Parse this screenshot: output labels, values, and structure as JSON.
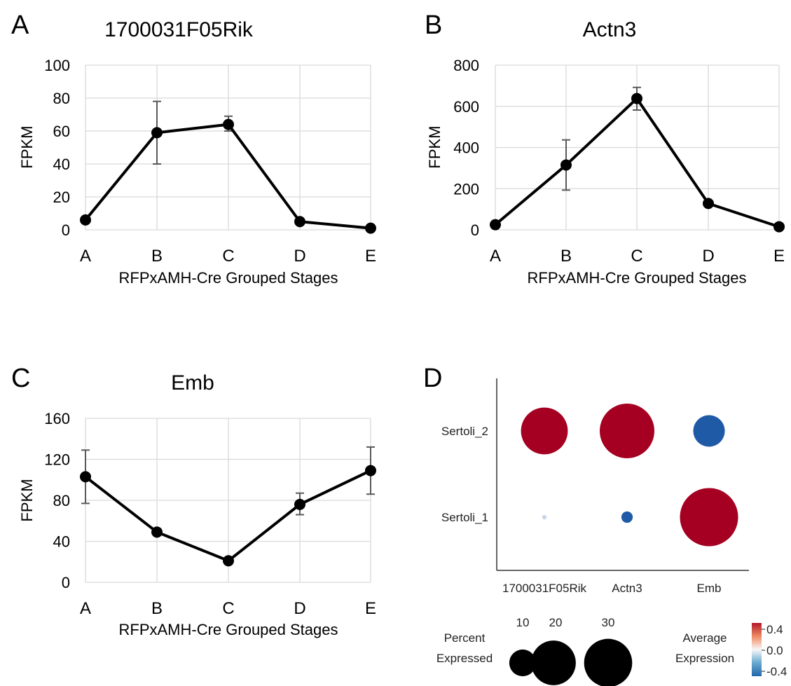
{
  "chart_data": [
    {
      "panel_label": "A",
      "type": "line",
      "title": "1700031F05Rik",
      "xlabel": "RFPxAMH-Cre Grouped Stages",
      "ylabel": "FPKM",
      "categories": [
        "A",
        "B",
        "C",
        "D",
        "E"
      ],
      "values": [
        6,
        59,
        64,
        5,
        1
      ],
      "error_low": [
        6,
        40,
        60,
        5,
        1
      ],
      "error_high": [
        6,
        78,
        69,
        5,
        1
      ],
      "yticks": [
        "0",
        "20",
        "40",
        "60",
        "80",
        "100"
      ],
      "ylim": [
        0,
        100
      ],
      "grid": true
    },
    {
      "panel_label": "B",
      "type": "line",
      "title": "Actn3",
      "xlabel": "RFPxAMH-Cre Grouped Stages",
      "ylabel": "FPKM",
      "categories": [
        "A",
        "B",
        "C",
        "D",
        "E"
      ],
      "values": [
        25,
        315,
        638,
        128,
        15
      ],
      "error_low": [
        25,
        193,
        582,
        128,
        15
      ],
      "error_high": [
        25,
        437,
        692,
        128,
        15
      ],
      "yticks": [
        "0",
        "200",
        "400",
        "600",
        "800"
      ],
      "ylim": [
        0,
        800
      ],
      "grid": true
    },
    {
      "panel_label": "C",
      "type": "line",
      "title": "Emb",
      "xlabel": "RFPxAMH-Cre Grouped Stages",
      "ylabel": "FPKM",
      "categories": [
        "A",
        "B",
        "C",
        "D",
        "E"
      ],
      "values": [
        103,
        49,
        21,
        76,
        109
      ],
      "error_low": [
        77,
        46,
        21,
        66,
        86
      ],
      "error_high": [
        129,
        52,
        21,
        87,
        132
      ],
      "yticks": [
        "0",
        "40",
        "80",
        "120",
        "160"
      ],
      "ylim": [
        0,
        160
      ],
      "grid": true
    },
    {
      "panel_label": "D",
      "type": "scatter",
      "subtype": "dot plot",
      "genes": [
        "1700031F05Rik",
        "Actn3",
        "Emb"
      ],
      "groups": [
        "Sertoli_2",
        "Sertoli_1"
      ],
      "points": [
        {
          "gene": "1700031F05Rik",
          "group": "Sertoli_2",
          "percent_expressed": 22,
          "average_expression": 0.4
        },
        {
          "gene": "Actn3",
          "group": "Sertoli_2",
          "percent_expressed": 30,
          "average_expression": 0.4
        },
        {
          "gene": "Emb",
          "group": "Sertoli_2",
          "percent_expressed": 10,
          "average_expression": -0.4
        },
        {
          "gene": "1700031F05Rik",
          "group": "Sertoli_1",
          "percent_expressed": 0.2,
          "average_expression": -0.1
        },
        {
          "gene": "Actn3",
          "group": "Sertoli_1",
          "percent_expressed": 1.3,
          "average_expression": -0.4
        },
        {
          "gene": "Emb",
          "group": "Sertoli_1",
          "percent_expressed": 34,
          "average_expression": 0.4
        }
      ],
      "size_legend": {
        "title_line1": "Percent",
        "title_line2": "Expressed",
        "values": [
          10,
          20,
          30
        ],
        "labels": [
          "10",
          "20",
          "30"
        ]
      },
      "color_legend": {
        "title_line1": "Average",
        "title_line2": "Expression",
        "labels": [
          "0.4",
          "0.0",
          "-0.4"
        ],
        "colors": [
          "#a50021",
          "#f7f7f7",
          "#1f5aa6"
        ]
      }
    }
  ],
  "colors": {
    "line": "#000000",
    "grid": "#d9d9d9",
    "error_bar": "#595959",
    "high": "#a50021",
    "mid": "#f7f7f7",
    "low": "#1f5aa6"
  }
}
